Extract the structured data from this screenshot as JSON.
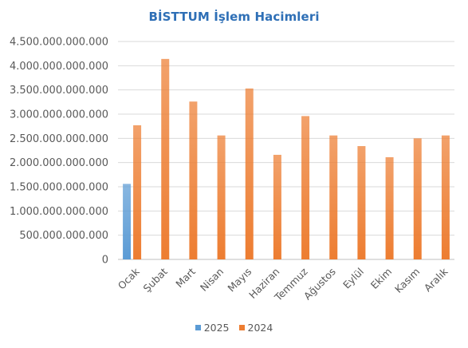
{
  "chart_data": {
    "type": "bar",
    "title": "BİSTTUM İşlem Hacimleri",
    "xlabel": "",
    "ylabel": "",
    "categories": [
      "Ocak",
      "Şubat",
      "Mart",
      "Nisan",
      "Mayıs",
      "Haziran",
      "Temmuz",
      "Ağustos",
      "Eylül",
      "Ekim",
      "Kasım",
      "Aralık"
    ],
    "ylim": [
      0,
      4500000000000
    ],
    "yticks": [
      0,
      500000000000,
      1000000000000,
      1500000000000,
      2000000000000,
      2500000000000,
      3000000000000,
      3500000000000,
      4000000000000,
      4500000000000
    ],
    "ytick_labels": [
      "0",
      "500.000.000.000",
      "1.000.000.000.000",
      "1.500.000.000.000",
      "2.000.000.000.000",
      "2.500.000.000.000",
      "3.000.000.000.000",
      "3.500.000.000.000",
      "4.000.000.000.000",
      "4.500.000.000.000"
    ],
    "grid": true,
    "legend_position": "bottom",
    "series": [
      {
        "name": "2025",
        "color": "#5b9bd5",
        "values": [
          1560000000000,
          null,
          null,
          null,
          null,
          null,
          null,
          null,
          null,
          null,
          null,
          null
        ]
      },
      {
        "name": "2024",
        "color": "#ed7d31",
        "values": [
          2770000000000,
          4140000000000,
          3260000000000,
          2560000000000,
          3530000000000,
          2160000000000,
          2960000000000,
          2560000000000,
          2340000000000,
          2110000000000,
          2500000000000,
          2560000000000
        ]
      }
    ]
  }
}
